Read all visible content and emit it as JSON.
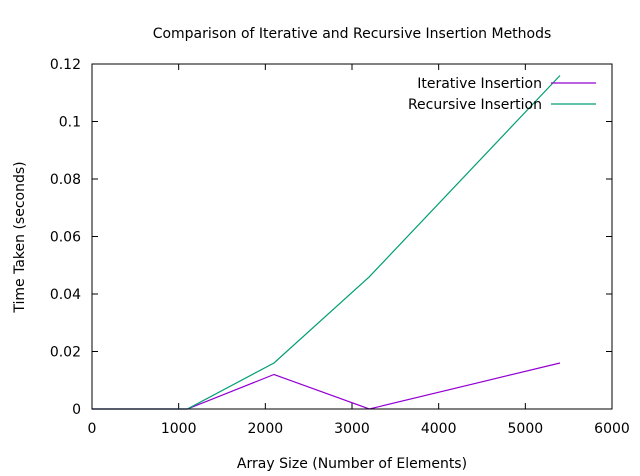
{
  "chart_data": {
    "type": "line",
    "title": "Comparison of Iterative and Recursive Insertion Methods",
    "xlabel": "Array Size (Number of Elements)",
    "ylabel": "Time Taken (seconds)",
    "xlim": [
      0,
      6000
    ],
    "ylim": [
      0,
      0.12
    ],
    "x_ticks": [
      0,
      1000,
      2000,
      3000,
      4000,
      5000,
      6000
    ],
    "x_tick_labels": [
      "0",
      "1000",
      "2000",
      "3000",
      "4000",
      "5000",
      "6000"
    ],
    "y_ticks": [
      0,
      0.02,
      0.04,
      0.06,
      0.08,
      0.1,
      0.12
    ],
    "y_tick_labels": [
      "0",
      "0.02",
      "0.04",
      "0.06",
      "0.08",
      "0.1",
      "0.12"
    ],
    "grid": false,
    "legend_position": "top-right",
    "series": [
      {
        "name": "Iterative Insertion",
        "color": "#9400d3",
        "points": [
          [
            0,
            0
          ],
          [
            1100,
            0
          ],
          [
            2100,
            0.012
          ],
          [
            3200,
            0
          ],
          [
            5400,
            0.016
          ]
        ]
      },
      {
        "name": "Recursive Insertion",
        "color": "#009e73",
        "points": [
          [
            0,
            0
          ],
          [
            1100,
            0
          ],
          [
            2100,
            0.016
          ],
          [
            3200,
            0.046
          ],
          [
            5400,
            0.116
          ]
        ]
      }
    ]
  }
}
